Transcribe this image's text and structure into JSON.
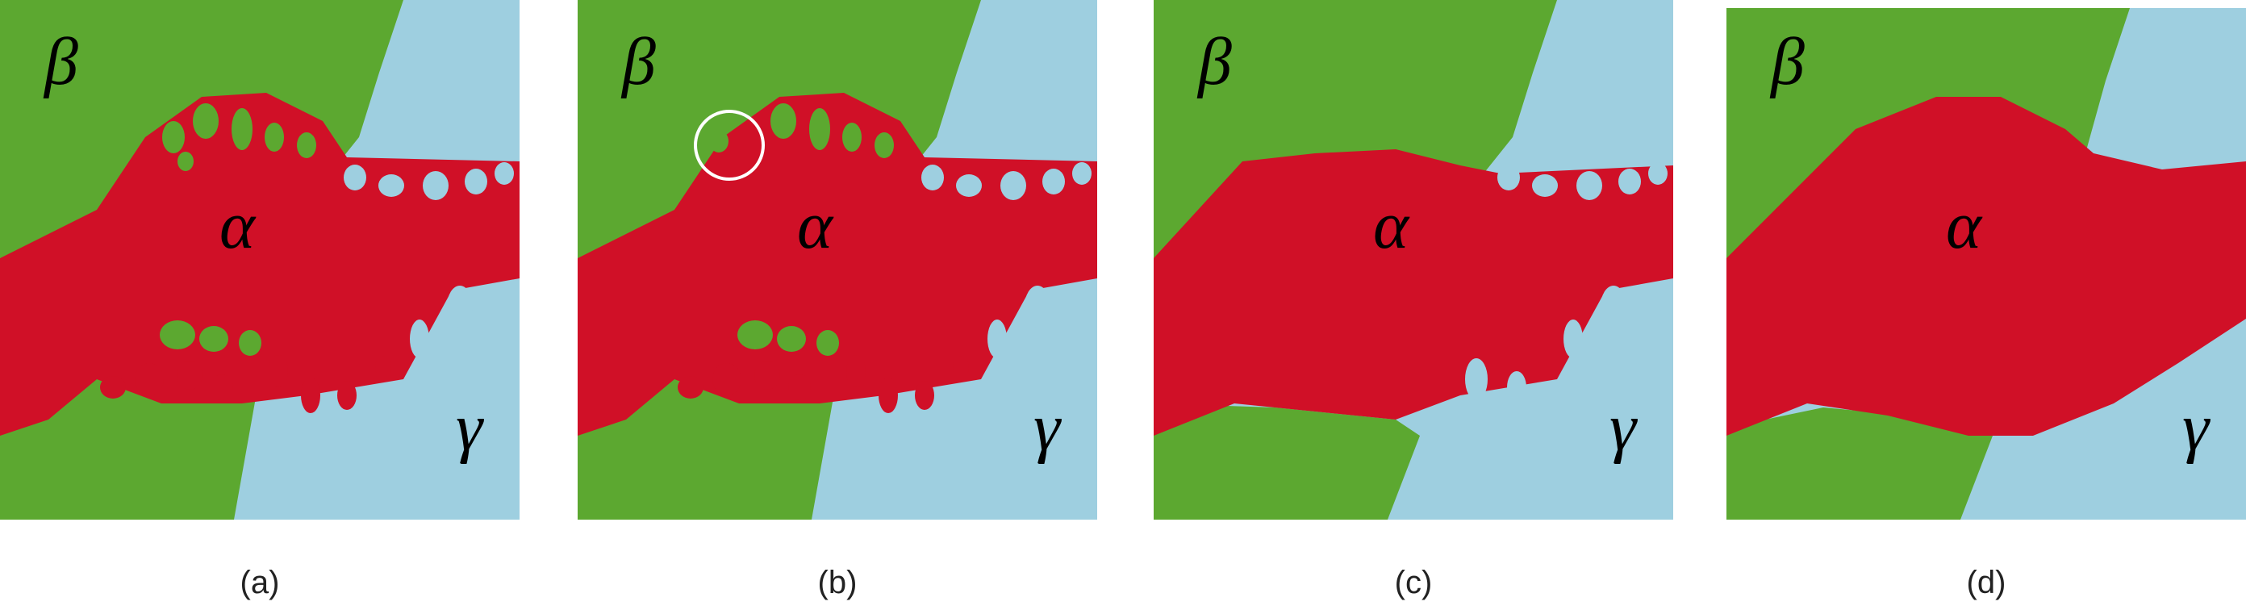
{
  "colors": {
    "beta": "#5ca830",
    "gamma": "#9ecfe0",
    "alpha": "#d01027",
    "marker": "#ffffff"
  },
  "regions": {
    "beta": "β",
    "alpha": "α",
    "gamma": "γ"
  },
  "panels": [
    {
      "caption": "(a)"
    },
    {
      "caption": "(b)"
    },
    {
      "caption": "(c)"
    },
    {
      "caption": "(d)"
    }
  ]
}
